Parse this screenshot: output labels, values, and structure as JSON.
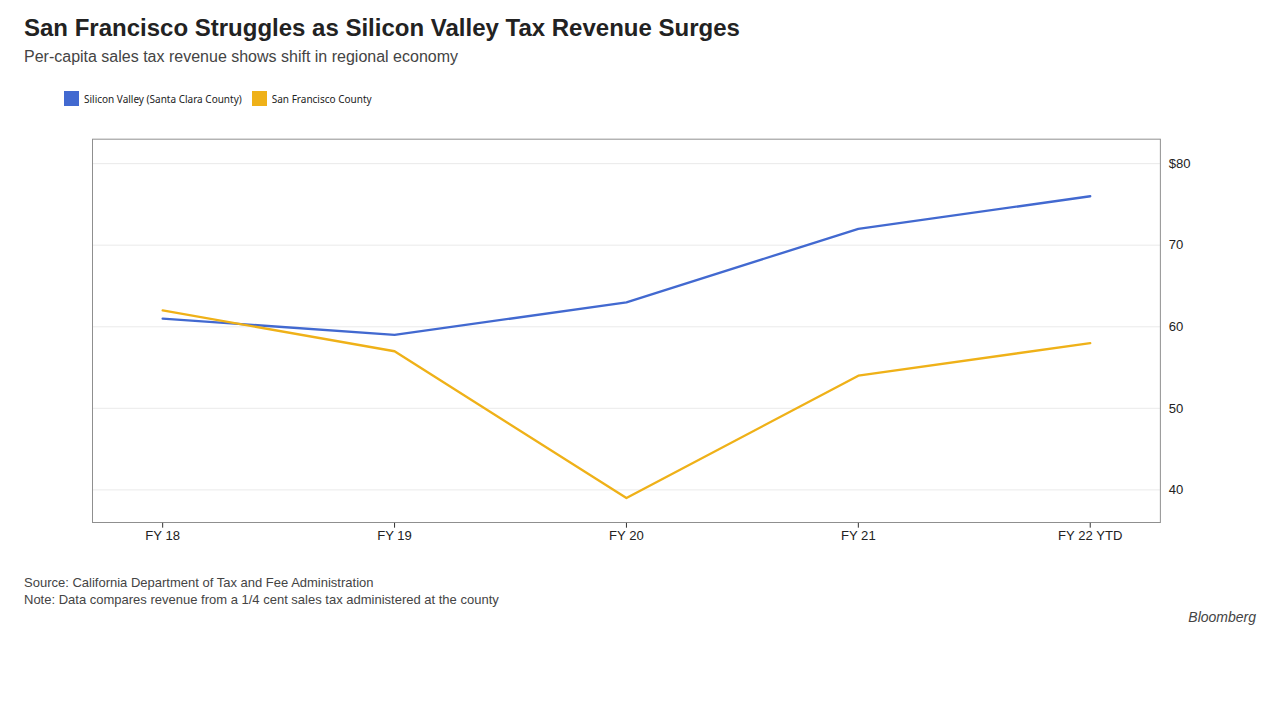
{
  "chart_data": {
    "type": "line",
    "title": "San Francisco Struggles as Silicon Valley Tax Revenue Surges",
    "subtitle": "Per-capita sales tax revenue shows shift in regional economy",
    "categories": [
      "FY 18",
      "FY 19",
      "FY 20",
      "FY 21",
      "FY 22 YTD"
    ],
    "series": [
      {
        "name": "Silicon Valley (Santa Clara County)",
        "values": [
          61.0,
          59.0,
          63.0,
          72.0,
          76.0
        ]
      },
      {
        "name": "San Francisco County",
        "values": [
          62.0,
          57.0,
          39.0,
          54.0,
          58.0
        ]
      }
    ],
    "ylim": [
      36,
      83
    ],
    "yticks": [
      40,
      50,
      60,
      70,
      {
        "value": 80,
        "label": "$80"
      }
    ],
    "grid": true,
    "legend": "upper left",
    "annotations": [
      "Source: California Department of Tax and Fee Administration",
      "Note: Data compares revenue from a 1/4 cent sales tax administered at the county",
      "Bloomberg"
    ]
  }
}
